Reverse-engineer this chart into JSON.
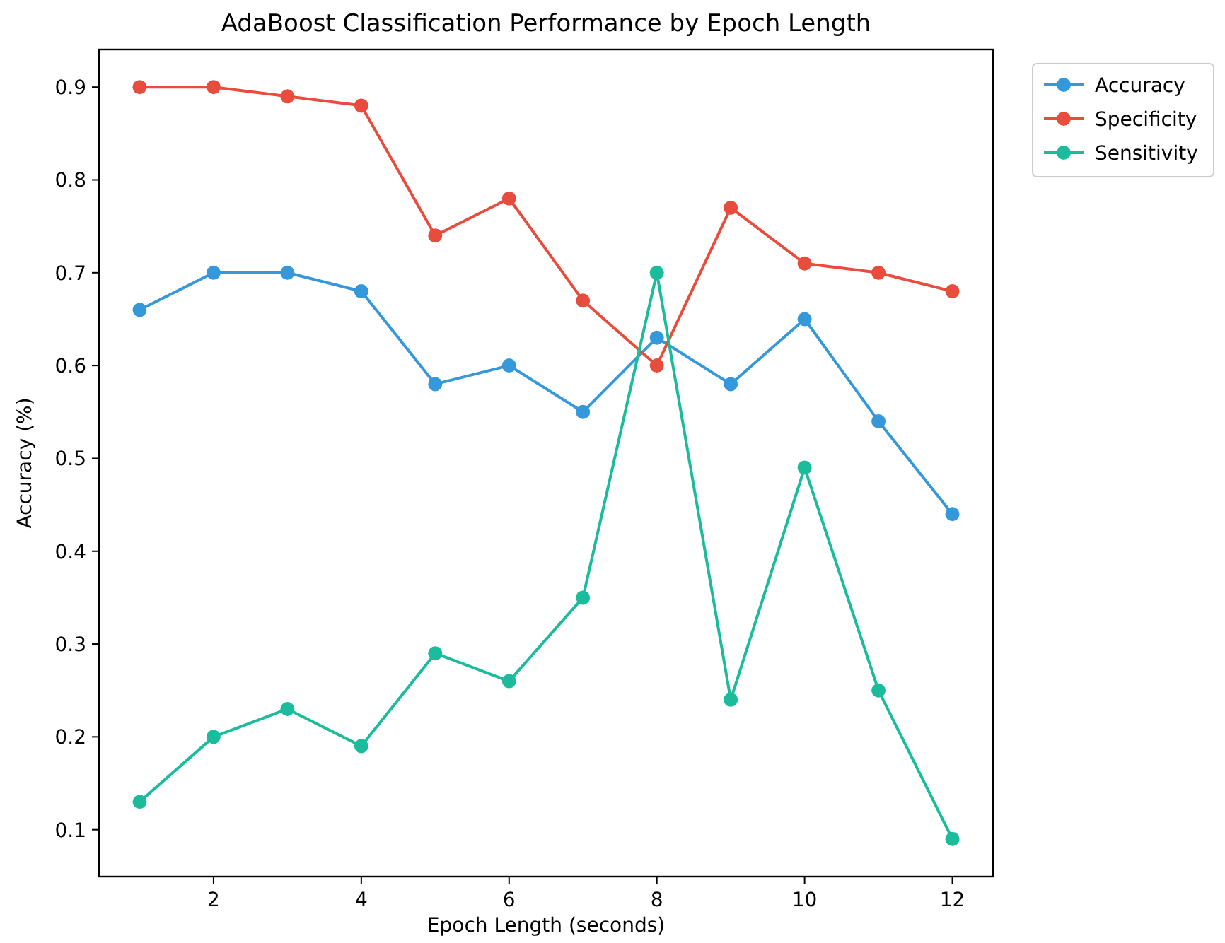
{
  "chart_data": {
    "type": "line",
    "title": "AdaBoost Classification Performance by Epoch Length",
    "xlabel": "Epoch Length (seconds)",
    "ylabel": "Accuracy (%)",
    "x": [
      1,
      2,
      3,
      4,
      5,
      6,
      7,
      8,
      9,
      10,
      11,
      12
    ],
    "series": [
      {
        "name": "Accuracy",
        "color": "#3498db",
        "values": [
          0.66,
          0.7,
          0.7,
          0.68,
          0.58,
          0.6,
          0.55,
          0.63,
          0.58,
          0.65,
          0.54,
          0.44
        ]
      },
      {
        "name": "Specificity",
        "color": "#e74c3c",
        "values": [
          0.9,
          0.9,
          0.89,
          0.88,
          0.74,
          0.78,
          0.67,
          0.6,
          0.77,
          0.71,
          0.7,
          0.68
        ]
      },
      {
        "name": "Sensitivity",
        "color": "#1abc9c",
        "values": [
          0.13,
          0.2,
          0.23,
          0.19,
          0.29,
          0.26,
          0.35,
          0.7,
          0.24,
          0.49,
          0.25,
          0.09
        ]
      }
    ],
    "xlim": [
      0.45,
      12.55
    ],
    "xticks": [
      2,
      4,
      6,
      8,
      10,
      12
    ],
    "ylim": [
      0.0495,
      0.9405
    ],
    "yticks": [
      0.1,
      0.2,
      0.3,
      0.4,
      0.5,
      0.6,
      0.7,
      0.8,
      0.9
    ],
    "marker": "circle",
    "line_style": "solid",
    "legend": "top right",
    "grid": false
  }
}
